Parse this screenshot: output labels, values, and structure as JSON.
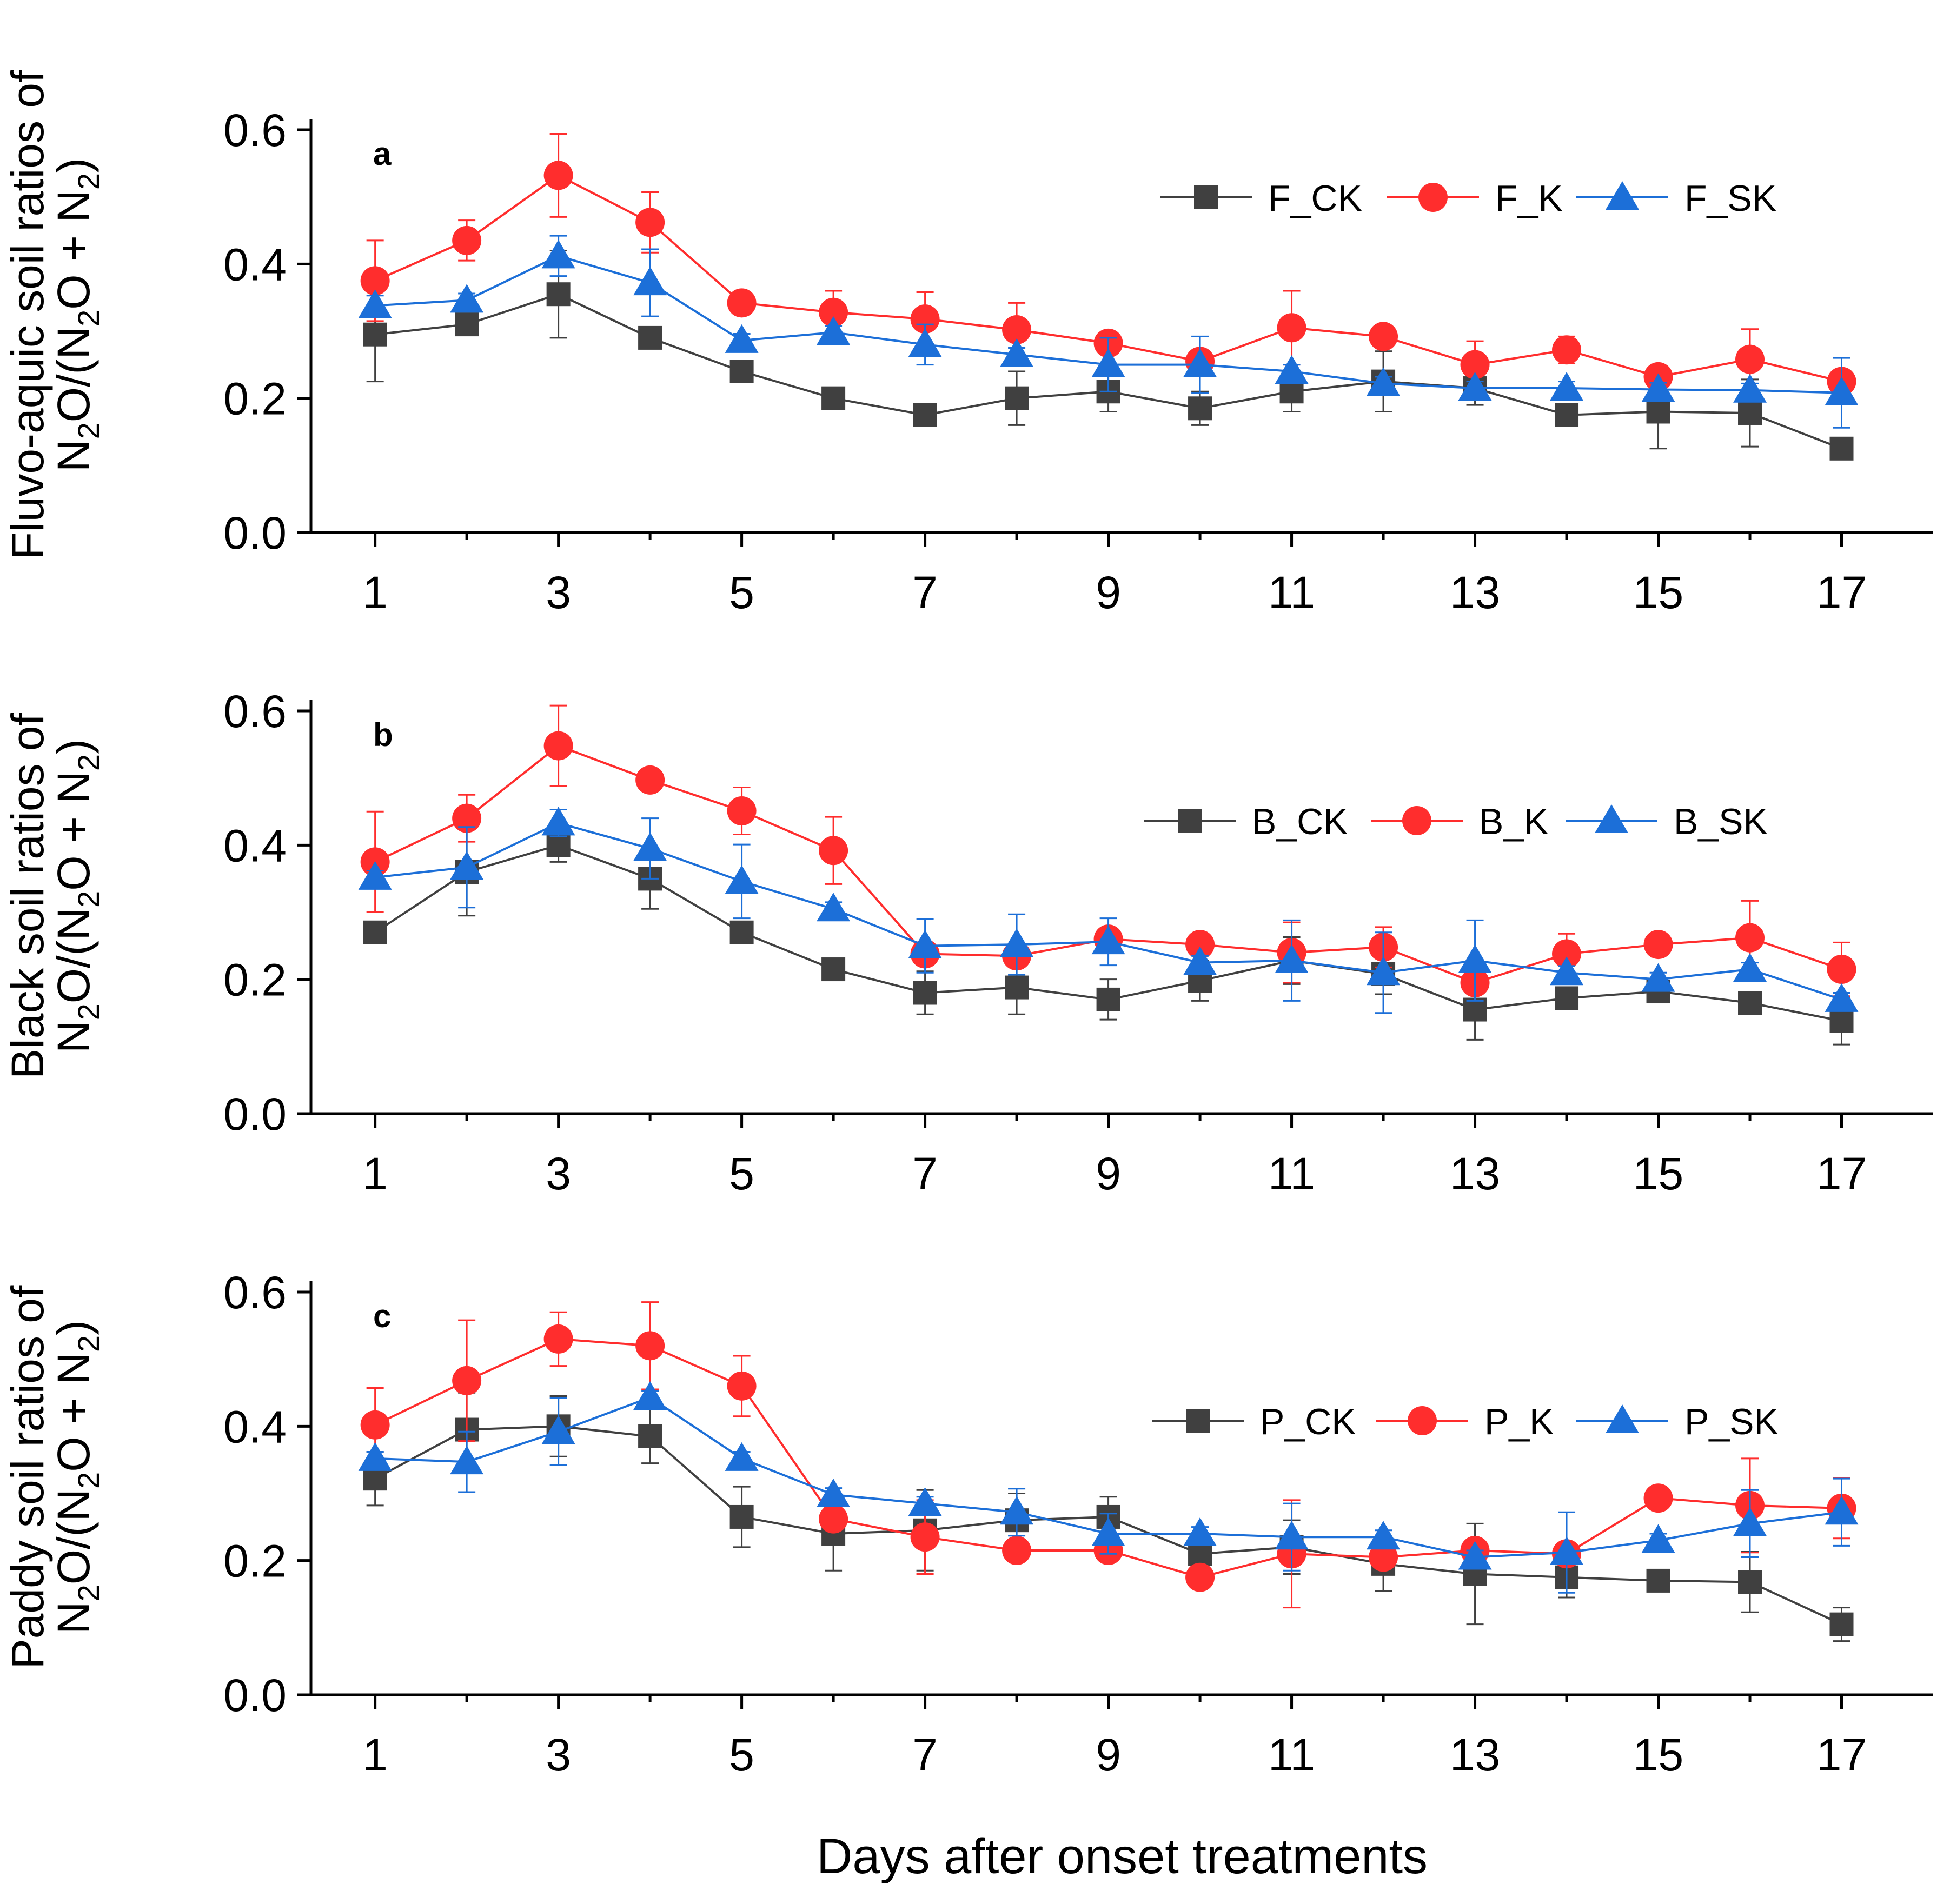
{
  "figure": {
    "x_axis_title": "Days after onset treatments"
  },
  "chart_data": [
    {
      "type": "line",
      "panel_label": "a",
      "ylabel_line1": "Fluvo-aquic soil ratios of",
      "ylabel_line2": {
        "t1": "N",
        "s1": "2",
        "t2": "O/(N",
        "s2": "2",
        "t3": "O + N",
        "s3": "2",
        "t4": ")"
      },
      "xlim": [
        0.3,
        18.0
      ],
      "ylim": [
        0,
        0.6
      ],
      "yticks": [
        "0.0",
        "0.2",
        "0.4",
        "0.6"
      ],
      "xticks": [
        "1",
        "3",
        "5",
        "7",
        "9",
        "11",
        "13",
        "15",
        "17"
      ],
      "x": [
        1,
        2,
        3,
        4,
        5,
        6,
        7,
        8,
        9,
        10,
        11,
        12,
        13,
        14,
        15,
        16,
        17
      ],
      "legend_position": "top-right",
      "series": [
        {
          "name": "F_CK",
          "color": "#404040",
          "marker": "square",
          "values": [
            0.295,
            0.31,
            0.355,
            0.29,
            0.24,
            0.2,
            0.175,
            0.2,
            0.21,
            0.185,
            0.21,
            0.225,
            0.215,
            0.175,
            0.18,
            0.178,
            0.125
          ],
          "errors": [
            0.07,
            0.01,
            0.065,
            0.01,
            0.01,
            0.01,
            0.01,
            0.04,
            0.03,
            0.025,
            0.03,
            0.045,
            0.025,
            0.01,
            0.055,
            0.05,
            0.01
          ]
        },
        {
          "name": "F_K",
          "color": "#ff2d2d",
          "marker": "circle",
          "values": [
            0.375,
            0.435,
            0.532,
            0.462,
            0.342,
            0.328,
            0.318,
            0.302,
            0.282,
            0.255,
            0.305,
            0.292,
            0.25,
            0.272,
            0.232,
            0.258,
            0.225
          ],
          "errors": [
            0.06,
            0.03,
            0.062,
            0.045,
            0.01,
            0.032,
            0.04,
            0.04,
            0.015,
            0.015,
            0.055,
            0.01,
            0.035,
            0.02,
            0.01,
            0.045,
            0.01
          ]
        },
        {
          "name": "F_SK",
          "color": "#1c6fd8",
          "marker": "triangle",
          "values": [
            0.338,
            0.346,
            0.412,
            0.372,
            0.286,
            0.298,
            0.28,
            0.265,
            0.25,
            0.25,
            0.24,
            0.222,
            0.215,
            0.215,
            0.213,
            0.212,
            0.208
          ],
          "errors": [
            0.015,
            0.01,
            0.03,
            0.05,
            0.01,
            0.01,
            0.03,
            0.01,
            0.04,
            0.042,
            0.01,
            0.01,
            0.01,
            0.01,
            0.01,
            0.01,
            0.052
          ]
        }
      ]
    },
    {
      "type": "line",
      "panel_label": "b",
      "ylabel_line1": "Black soil ratios of",
      "ylabel_line2": {
        "t1": "N",
        "s1": "2",
        "t2": "O/(N",
        "s2": "2",
        "t3": "O + N",
        "s3": "2",
        "t4": ")"
      },
      "xlim": [
        0.3,
        18.0
      ],
      "ylim": [
        0,
        0.6
      ],
      "yticks": [
        "0.0",
        "0.2",
        "0.4",
        "0.6"
      ],
      "xticks": [
        "1",
        "3",
        "5",
        "7",
        "9",
        "11",
        "13",
        "15",
        "17"
      ],
      "x": [
        1,
        2,
        3,
        4,
        5,
        6,
        7,
        8,
        9,
        10,
        11,
        12,
        13,
        14,
        15,
        16,
        17
      ],
      "legend_position": "top-right",
      "series": [
        {
          "name": "B_CK",
          "color": "#404040",
          "marker": "square",
          "values": [
            0.27,
            0.36,
            0.4,
            0.35,
            0.27,
            0.215,
            0.18,
            0.188,
            0.17,
            0.198,
            0.228,
            0.208,
            0.155,
            0.172,
            0.182,
            0.165,
            0.138
          ],
          "errors": [
            0.01,
            0.065,
            0.025,
            0.045,
            0.01,
            0.01,
            0.032,
            0.04,
            0.03,
            0.03,
            0.035,
            0.03,
            0.045,
            0.01,
            0.01,
            0.01,
            0.035
          ]
        },
        {
          "name": "B_K",
          "color": "#ff2d2d",
          "marker": "circle",
          "values": [
            0.375,
            0.44,
            0.548,
            0.497,
            0.451,
            0.392,
            0.238,
            0.235,
            0.26,
            0.252,
            0.24,
            0.248,
            0.195,
            0.238,
            0.252,
            0.262,
            0.215
          ],
          "errors": [
            0.075,
            0.035,
            0.06,
            0.01,
            0.035,
            0.05,
            0.01,
            0.01,
            0.01,
            0.012,
            0.045,
            0.03,
            0.01,
            0.03,
            0.01,
            0.055,
            0.04
          ]
        },
        {
          "name": "B_SK",
          "color": "#1c6fd8",
          "marker": "triangle",
          "values": [
            0.352,
            0.367,
            0.433,
            0.395,
            0.346,
            0.305,
            0.25,
            0.252,
            0.256,
            0.225,
            0.228,
            0.21,
            0.228,
            0.21,
            0.2,
            0.215,
            0.17
          ],
          "errors": [
            0.01,
            0.06,
            0.02,
            0.045,
            0.055,
            0.01,
            0.04,
            0.045,
            0.035,
            0.01,
            0.06,
            0.06,
            0.06,
            0.01,
            0.01,
            0.01,
            0.01
          ]
        }
      ]
    },
    {
      "type": "line",
      "panel_label": "c",
      "ylabel_line1": "Paddy soil ratios of",
      "ylabel_line2": {
        "t1": "N",
        "s1": "2",
        "t2": "O/(N",
        "s2": "2",
        "t3": "O + N",
        "s3": "2",
        "t4": ")"
      },
      "xlim": [
        0.3,
        18.0
      ],
      "ylim": [
        0,
        0.6
      ],
      "yticks": [
        "0.0",
        "0.2",
        "0.4",
        "0.6"
      ],
      "xticks": [
        "1",
        "3",
        "5",
        "7",
        "9",
        "11",
        "13",
        "15",
        "17"
      ],
      "x": [
        1,
        2,
        3,
        4,
        5,
        6,
        7,
        8,
        9,
        10,
        11,
        12,
        13,
        14,
        15,
        16,
        17
      ],
      "legend_position": "right",
      "series": [
        {
          "name": "P_CK",
          "color": "#404040",
          "marker": "square",
          "values": [
            0.322,
            0.395,
            0.4,
            0.385,
            0.265,
            0.24,
            0.245,
            0.26,
            0.265,
            0.21,
            0.22,
            0.195,
            0.18,
            0.175,
            0.17,
            0.168,
            0.105
          ],
          "errors": [
            0.04,
            0.055,
            0.045,
            0.04,
            0.045,
            0.055,
            0.06,
            0.04,
            0.03,
            0.03,
            0.04,
            0.04,
            0.075,
            0.03,
            0.01,
            0.045,
            0.025
          ]
        },
        {
          "name": "P_K",
          "color": "#ff2d2d",
          "marker": "circle",
          "values": [
            0.402,
            0.468,
            0.53,
            0.52,
            0.46,
            0.262,
            0.235,
            0.215,
            0.215,
            0.175,
            0.21,
            0.205,
            0.215,
            0.21,
            0.293,
            0.282,
            0.278
          ],
          "errors": [
            0.055,
            0.09,
            0.04,
            0.065,
            0.045,
            0.01,
            0.055,
            0.01,
            0.01,
            0.015,
            0.08,
            0.01,
            0.01,
            0.01,
            0.01,
            0.07,
            0.045
          ]
        },
        {
          "name": "P_SK",
          "color": "#1c6fd8",
          "marker": "triangle",
          "values": [
            0.352,
            0.347,
            0.392,
            0.443,
            0.352,
            0.298,
            0.285,
            0.272,
            0.24,
            0.24,
            0.235,
            0.235,
            0.205,
            0.212,
            0.23,
            0.255,
            0.272
          ],
          "errors": [
            0.01,
            0.045,
            0.05,
            0.01,
            0.01,
            0.01,
            0.01,
            0.035,
            0.03,
            0.01,
            0.05,
            0.01,
            0.01,
            0.06,
            0.01,
            0.05,
            0.05
          ]
        }
      ]
    }
  ]
}
